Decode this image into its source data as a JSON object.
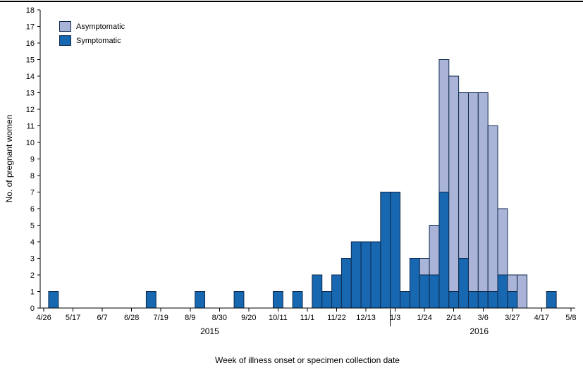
{
  "chart_data": {
    "type": "bar",
    "stacked": true,
    "title": "",
    "xlabel": "Week of illness onset or specimen collection date",
    "ylabel": "No. of pregnant women",
    "ylim": [
      0,
      18
    ],
    "y_tick_step": 1,
    "weeks_total": 55,
    "legend": {
      "position": "top-left",
      "items": [
        {
          "key": "asymptomatic",
          "label": "Asymptomatic"
        },
        {
          "key": "symptomatic",
          "label": "Symptomatic"
        }
      ]
    },
    "colors": {
      "symptomatic": "#1767b1",
      "asymptomatic": "#aab4d9",
      "bar_border": "#0e2a4d",
      "axis": "#000000"
    },
    "x_ticks": [
      {
        "week": 0,
        "label": "4/26"
      },
      {
        "week": 3,
        "label": "5/17"
      },
      {
        "week": 6,
        "label": "6/7"
      },
      {
        "week": 9,
        "label": "6/28"
      },
      {
        "week": 12,
        "label": "7/19"
      },
      {
        "week": 15,
        "label": "8/9"
      },
      {
        "week": 18,
        "label": "8/30"
      },
      {
        "week": 21,
        "label": "9/20"
      },
      {
        "week": 24,
        "label": "10/11"
      },
      {
        "week": 27,
        "label": "11/1"
      },
      {
        "week": 30,
        "label": "11/22"
      },
      {
        "week": 33,
        "label": "12/13"
      },
      {
        "week": 36,
        "label": "1/3"
      },
      {
        "week": 39,
        "label": "1/24"
      },
      {
        "week": 42,
        "label": "2/14"
      },
      {
        "week": 45,
        "label": "3/6"
      },
      {
        "week": 48,
        "label": "3/27"
      },
      {
        "week": 51,
        "label": "4/17"
      },
      {
        "week": 54,
        "label": "5/8"
      }
    ],
    "year_labels": [
      {
        "label": "2015",
        "week": 17
      },
      {
        "label": "2016",
        "week": 44.6
      }
    ],
    "year_divider_week_boundary": 35.5,
    "bars": [
      {
        "week": 1,
        "date": "5/3",
        "symptomatic": 1,
        "asymptomatic": 0
      },
      {
        "week": 11,
        "date": "7/12",
        "symptomatic": 1,
        "asymptomatic": 0
      },
      {
        "week": 16,
        "date": "8/16",
        "symptomatic": 1,
        "asymptomatic": 0
      },
      {
        "week": 20,
        "date": "9/13",
        "symptomatic": 1,
        "asymptomatic": 0
      },
      {
        "week": 24,
        "date": "10/11",
        "symptomatic": 1,
        "asymptomatic": 0
      },
      {
        "week": 26,
        "date": "10/25",
        "symptomatic": 1,
        "asymptomatic": 0
      },
      {
        "week": 28,
        "date": "11/8",
        "symptomatic": 2,
        "asymptomatic": 0
      },
      {
        "week": 29,
        "date": "11/15",
        "symptomatic": 1,
        "asymptomatic": 0
      },
      {
        "week": 30,
        "date": "11/22",
        "symptomatic": 2,
        "asymptomatic": 0
      },
      {
        "week": 31,
        "date": "11/29",
        "symptomatic": 3,
        "asymptomatic": 0
      },
      {
        "week": 32,
        "date": "12/6",
        "symptomatic": 4,
        "asymptomatic": 0
      },
      {
        "week": 33,
        "date": "12/13",
        "symptomatic": 4,
        "asymptomatic": 0
      },
      {
        "week": 34,
        "date": "12/20",
        "symptomatic": 4,
        "asymptomatic": 0
      },
      {
        "week": 35,
        "date": "12/27",
        "symptomatic": 7,
        "asymptomatic": 0
      },
      {
        "week": 36,
        "date": "1/3",
        "symptomatic": 7,
        "asymptomatic": 0
      },
      {
        "week": 37,
        "date": "1/10",
        "symptomatic": 1,
        "asymptomatic": 0
      },
      {
        "week": 38,
        "date": "1/17",
        "symptomatic": 3,
        "asymptomatic": 0
      },
      {
        "week": 39,
        "date": "1/24",
        "symptomatic": 2,
        "asymptomatic": 1
      },
      {
        "week": 40,
        "date": "1/31",
        "symptomatic": 2,
        "asymptomatic": 3
      },
      {
        "week": 41,
        "date": "2/7",
        "symptomatic": 7,
        "asymptomatic": 8
      },
      {
        "week": 42,
        "date": "2/14",
        "symptomatic": 1,
        "asymptomatic": 13
      },
      {
        "week": 43,
        "date": "2/21",
        "symptomatic": 3,
        "asymptomatic": 10
      },
      {
        "week": 44,
        "date": "2/28",
        "symptomatic": 1,
        "asymptomatic": 12
      },
      {
        "week": 45,
        "date": "3/6",
        "symptomatic": 1,
        "asymptomatic": 12
      },
      {
        "week": 46,
        "date": "3/13",
        "symptomatic": 1,
        "asymptomatic": 10
      },
      {
        "week": 47,
        "date": "3/20",
        "symptomatic": 2,
        "asymptomatic": 4
      },
      {
        "week": 48,
        "date": "3/27",
        "symptomatic": 1,
        "asymptomatic": 1
      },
      {
        "week": 49,
        "date": "4/3",
        "symptomatic": 0,
        "asymptomatic": 2
      },
      {
        "week": 52,
        "date": "4/24",
        "symptomatic": 1,
        "asymptomatic": 0
      }
    ]
  }
}
